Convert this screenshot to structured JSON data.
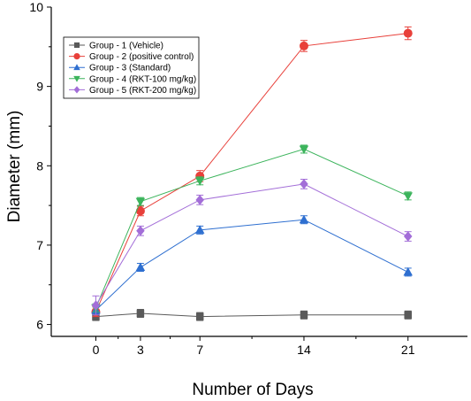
{
  "chart_data": {
    "type": "line",
    "xlabel": "Number of Days",
    "ylabel": "Diameter (mm)",
    "x": [
      0,
      3,
      7,
      14,
      21
    ],
    "xticks": [
      "0",
      "3",
      "7",
      "14",
      "21"
    ],
    "yticks": [
      "6",
      "7",
      "8",
      "9",
      "10"
    ],
    "xlim": [
      -3,
      25
    ],
    "ylim": [
      5.85,
      10.0
    ],
    "legend_position": "top-left",
    "series": [
      {
        "name": "Group - 1 (Vehicle)",
        "marker": "square",
        "color": "#5a5a5a",
        "values": [
          6.1,
          6.14,
          6.1,
          6.12,
          6.12
        ],
        "errors": [
          0.05,
          0.05,
          0.05,
          0.05,
          0.05
        ]
      },
      {
        "name": "Group - 2 (positive control)",
        "marker": "circle",
        "color": "#e8403a",
        "values": [
          6.16,
          7.43,
          7.87,
          9.51,
          9.67
        ],
        "errors": [
          0.06,
          0.06,
          0.07,
          0.07,
          0.08
        ]
      },
      {
        "name": "Group - 3 (Standard)",
        "marker": "triangle-up",
        "color": "#2e6fd0",
        "values": [
          6.18,
          6.72,
          7.19,
          7.32,
          6.66
        ],
        "errors": [
          0.05,
          0.05,
          0.05,
          0.05,
          0.05
        ]
      },
      {
        "name": "Group - 4 (RKT-100 mg/kg)",
        "marker": "triangle-down",
        "color": "#3cb45c",
        "values": [
          6.21,
          7.55,
          7.81,
          8.21,
          7.62
        ],
        "errors": [
          0.05,
          0.05,
          0.05,
          0.05,
          0.05
        ]
      },
      {
        "name": "Group - 5 (RKT-200 mg/kg)",
        "marker": "diamond",
        "color": "#a36ed8",
        "values": [
          6.24,
          7.18,
          7.57,
          7.77,
          7.11
        ],
        "errors": [
          0.12,
          0.06,
          0.06,
          0.06,
          0.06
        ]
      }
    ]
  }
}
